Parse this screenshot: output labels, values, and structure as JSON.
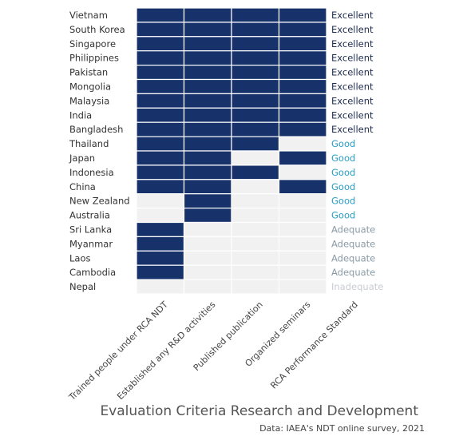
{
  "chart_data": {
    "type": "heatmap",
    "title": "Evaluation Criteria Research and Development",
    "source": "Data: IAEA's NDT online survey, 2021",
    "columns": [
      "Trained people under RCA NDT",
      "Established any R&D activities",
      "Published publication",
      "Organized seminars"
    ],
    "column_header_extra": "RCA Performance Standard",
    "rows": [
      {
        "country": "Vietnam",
        "values": [
          1,
          1,
          1,
          1
        ],
        "rating": "Excellent"
      },
      {
        "country": "South Korea",
        "values": [
          1,
          1,
          1,
          1
        ],
        "rating": "Excellent"
      },
      {
        "country": "Singapore",
        "values": [
          1,
          1,
          1,
          1
        ],
        "rating": "Excellent"
      },
      {
        "country": "Philippines",
        "values": [
          1,
          1,
          1,
          1
        ],
        "rating": "Excellent"
      },
      {
        "country": "Pakistan",
        "values": [
          1,
          1,
          1,
          1
        ],
        "rating": "Excellent"
      },
      {
        "country": "Mongolia",
        "values": [
          1,
          1,
          1,
          1
        ],
        "rating": "Excellent"
      },
      {
        "country": "Malaysia",
        "values": [
          1,
          1,
          1,
          1
        ],
        "rating": "Excellent"
      },
      {
        "country": "India",
        "values": [
          1,
          1,
          1,
          1
        ],
        "rating": "Excellent"
      },
      {
        "country": "Bangladesh",
        "values": [
          1,
          1,
          1,
          1
        ],
        "rating": "Excellent"
      },
      {
        "country": "Thailand",
        "values": [
          1,
          1,
          1,
          0
        ],
        "rating": "Good"
      },
      {
        "country": "Japan",
        "values": [
          1,
          1,
          0,
          1
        ],
        "rating": "Good"
      },
      {
        "country": "Indonesia",
        "values": [
          1,
          1,
          1,
          0
        ],
        "rating": "Good"
      },
      {
        "country": "China",
        "values": [
          1,
          1,
          0,
          1
        ],
        "rating": "Good"
      },
      {
        "country": "New Zealand",
        "values": [
          0,
          1,
          0,
          0
        ],
        "rating": "Good"
      },
      {
        "country": "Australia",
        "values": [
          0,
          1,
          0,
          0
        ],
        "rating": "Good"
      },
      {
        "country": "Sri Lanka",
        "values": [
          1,
          0,
          0,
          0
        ],
        "rating": "Adequate"
      },
      {
        "country": "Myanmar",
        "values": [
          1,
          0,
          0,
          0
        ],
        "rating": "Adequate"
      },
      {
        "country": "Laos",
        "values": [
          1,
          0,
          0,
          0
        ],
        "rating": "Adequate"
      },
      {
        "country": "Cambodia",
        "values": [
          1,
          0,
          0,
          0
        ],
        "rating": "Adequate"
      },
      {
        "country": "Nepal",
        "values": [
          0,
          0,
          0,
          0
        ],
        "rating": "Inadequate"
      }
    ],
    "colors": {
      "filled": "#17326b",
      "empty": "#f1f1f1",
      "Excellent": "#1f2d4f",
      "Good": "#2a9fc4",
      "Adequate": "#8a9aa6",
      "Inadequate": "#c9ccd0"
    }
  }
}
